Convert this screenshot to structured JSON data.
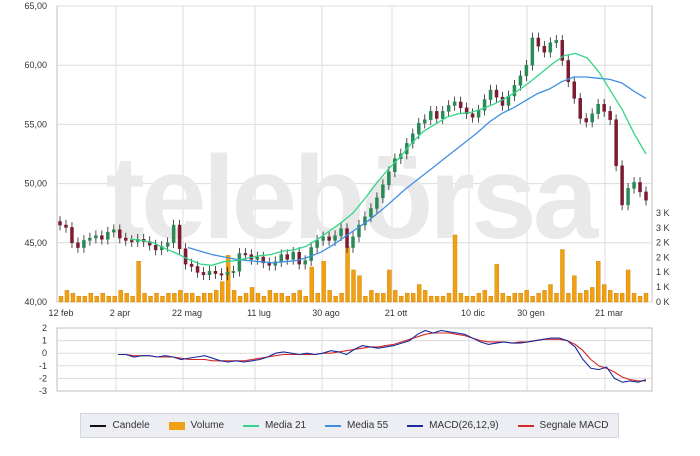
{
  "chart_data": {
    "type": "candlestick",
    "price_axis": {
      "ylim": [
        40,
        65
      ],
      "ticks": [
        "65,00",
        "60,00",
        "55,00",
        "50,00",
        "45,00",
        "40,00"
      ]
    },
    "volume_axis": {
      "ylim": [
        0,
        3.5
      ],
      "ticks": [
        "3 K",
        "3 K",
        "2 K",
        "2 K",
        "1 K",
        "1 K",
        "0 K"
      ]
    },
    "macd_axis": {
      "ylim": [
        -3,
        2
      ],
      "ticks": [
        "2",
        "1",
        "0",
        "-1",
        "-2",
        "-3"
      ]
    },
    "x_ticks": [
      "12 feb",
      "2 apr",
      "22 mag",
      "11 lug",
      "30 ago",
      "21 ott",
      "10 dic",
      "30 gen",
      "21 mar"
    ],
    "watermark": "telebörsa",
    "colors": {
      "up": "#2a8a55",
      "down": "#7d1b33",
      "volume": "#f0a010",
      "media21": "#33d688",
      "media55": "#3f8fe0",
      "macd": "#1b2b9c",
      "signal": "#d62828",
      "grid": "#dcdcdc"
    },
    "candles_close": [
      46.5,
      46.3,
      45.0,
      44.6,
      45.2,
      45.4,
      45.6,
      45.3,
      45.9,
      46.1,
      45.4,
      45.2,
      45.1,
      45.3,
      45.1,
      44.8,
      44.4,
      44.7,
      45.0,
      46.5,
      44.5,
      43.2,
      43.0,
      42.5,
      42.3,
      42.6,
      42.4,
      42.3,
      42.5,
      42.6,
      44.1,
      44.0,
      43.6,
      43.8,
      43.3,
      43.1,
      43.4,
      44.0,
      43.6,
      44.2,
      43.2,
      43.5,
      44.6,
      45.2,
      45.5,
      45.2,
      45.6,
      46.2,
      44.6,
      45.5,
      46.5,
      47.2,
      47.9,
      48.8,
      49.9,
      51.0,
      52.1,
      52.5,
      53.4,
      54.2,
      55.1,
      55.4,
      56.1,
      55.5,
      56.1,
      56.6,
      56.9,
      56.4,
      55.9,
      55.6,
      56.2,
      57.1,
      57.9,
      57.3,
      56.6,
      57.4,
      58.3,
      59.1,
      60.0,
      62.3,
      61.6,
      61.1,
      61.9,
      62.1,
      60.4,
      58.6,
      57.2,
      55.5,
      55.2,
      55.9,
      56.7,
      56.1,
      55.4,
      51.5,
      48.2,
      49.6,
      50.1,
      49.3,
      48.6
    ],
    "volume_values": [
      0.2,
      0.4,
      0.3,
      0.2,
      0.2,
      0.3,
      0.2,
      0.3,
      0.2,
      0.2,
      0.4,
      0.3,
      0.2,
      1.4,
      0.3,
      0.2,
      0.3,
      0.2,
      0.3,
      0.3,
      0.4,
      0.3,
      0.3,
      0.2,
      0.3,
      0.3,
      0.4,
      0.7,
      1.6,
      0.4,
      0.2,
      0.3,
      0.5,
      0.3,
      0.2,
      0.4,
      0.3,
      0.3,
      0.2,
      0.3,
      0.4,
      0.2,
      1.2,
      0.3,
      1.4,
      0.4,
      0.2,
      0.3,
      1.9,
      1.1,
      0.9,
      0.2,
      0.4,
      0.3,
      0.3,
      1.1,
      0.4,
      0.2,
      0.3,
      0.3,
      0.6,
      0.4,
      0.2,
      0.2,
      0.2,
      0.3,
      2.3,
      0.3,
      0.2,
      0.2,
      0.3,
      0.4,
      0.2,
      1.3,
      0.3,
      0.2,
      0.3,
      0.3,
      0.4,
      0.2,
      0.3,
      0.4,
      0.6,
      0.3,
      1.8,
      0.3,
      0.9,
      0.3,
      0.4,
      0.5,
      1.4,
      0.6,
      0.4,
      0.3,
      0.3,
      1.1,
      0.3,
      0.2,
      0.3
    ],
    "macd_values": [
      -0.1,
      -0.1,
      -0.3,
      -0.2,
      -0.2,
      -0.3,
      -0.2,
      -0.3,
      -0.5,
      -0.4,
      -0.3,
      -0.2,
      -0.4,
      -0.6,
      -0.7,
      -0.6,
      -0.7,
      -0.6,
      -0.5,
      -0.3,
      0.0,
      0.1,
      0.0,
      -0.1,
      0.0,
      -0.1,
      0.0,
      0.2,
      0.1,
      -0.1,
      0.3,
      0.6,
      0.5,
      0.4,
      0.5,
      0.6,
      0.8,
      1.0,
      1.5,
      1.8,
      1.6,
      1.8,
      1.7,
      1.6,
      1.5,
      1.2,
      0.9,
      0.7,
      0.8,
      0.9,
      0.8,
      0.8,
      0.9,
      1.0,
      1.1,
      1.2,
      1.2,
      1.0,
      0.5,
      -0.5,
      -1.2,
      -1.3,
      -1.1,
      -2.0,
      -2.3,
      -2.2,
      -2.3,
      -2.1
    ],
    "signal_values": [
      -0.1,
      -0.1,
      -0.2,
      -0.2,
      -0.2,
      -0.3,
      -0.3,
      -0.3,
      -0.4,
      -0.5,
      -0.5,
      -0.5,
      -0.6,
      -0.6,
      -0.6,
      -0.6,
      -0.6,
      -0.5,
      -0.4,
      -0.3,
      -0.2,
      -0.1,
      -0.1,
      -0.1,
      -0.1,
      -0.1,
      0.0,
      0.0,
      0.1,
      0.2,
      0.3,
      0.4,
      0.5,
      0.5,
      0.6,
      0.7,
      0.9,
      1.1,
      1.3,
      1.5,
      1.6,
      1.6,
      1.6,
      1.5,
      1.4,
      1.2,
      1.0,
      0.9,
      0.9,
      0.9,
      0.8,
      0.9,
      0.9,
      1.0,
      1.1,
      1.1,
      1.1,
      1.0,
      0.7,
      0.2,
      -0.5,
      -1.0,
      -1.2,
      -1.5,
      -1.9,
      -2.1,
      -2.2,
      -2.2
    ],
    "media21_values": [
      45.3,
      45.2,
      45.0,
      44.5,
      44.1,
      43.6,
      43.2,
      43.1,
      43.4,
      43.5,
      43.7,
      43.9,
      44.0,
      44.3,
      44.4,
      44.7,
      45.3,
      46.0,
      46.7,
      47.5,
      48.7,
      50.0,
      51.2,
      52.2,
      53.4,
      54.4,
      55.0,
      55.6,
      55.9,
      56.0,
      56.3,
      56.7,
      57.2,
      57.8,
      58.5,
      59.3,
      60.1,
      60.8,
      61.0,
      60.6,
      59.4,
      57.8,
      56.2,
      54.2,
      52.5
    ],
    "media55_values": [
      44.6,
      44.3,
      44.0,
      43.8,
      43.6,
      43.5,
      43.4,
      43.3,
      43.4,
      43.5,
      43.8,
      44.2,
      44.8,
      45.5,
      46.2,
      46.9,
      47.7,
      48.6,
      49.5,
      50.3,
      51.1,
      51.9,
      52.7,
      53.5,
      54.3,
      55.2,
      55.9,
      56.4,
      57.0,
      57.6,
      58.0,
      58.6,
      59.0,
      59.0,
      58.9,
      58.8,
      58.5,
      57.8,
      57.2
    ],
    "legend": [
      "Candele",
      "Volume",
      "Media 21",
      "Media 55",
      "MACD(26,12,9)",
      "Segnale MACD"
    ]
  }
}
